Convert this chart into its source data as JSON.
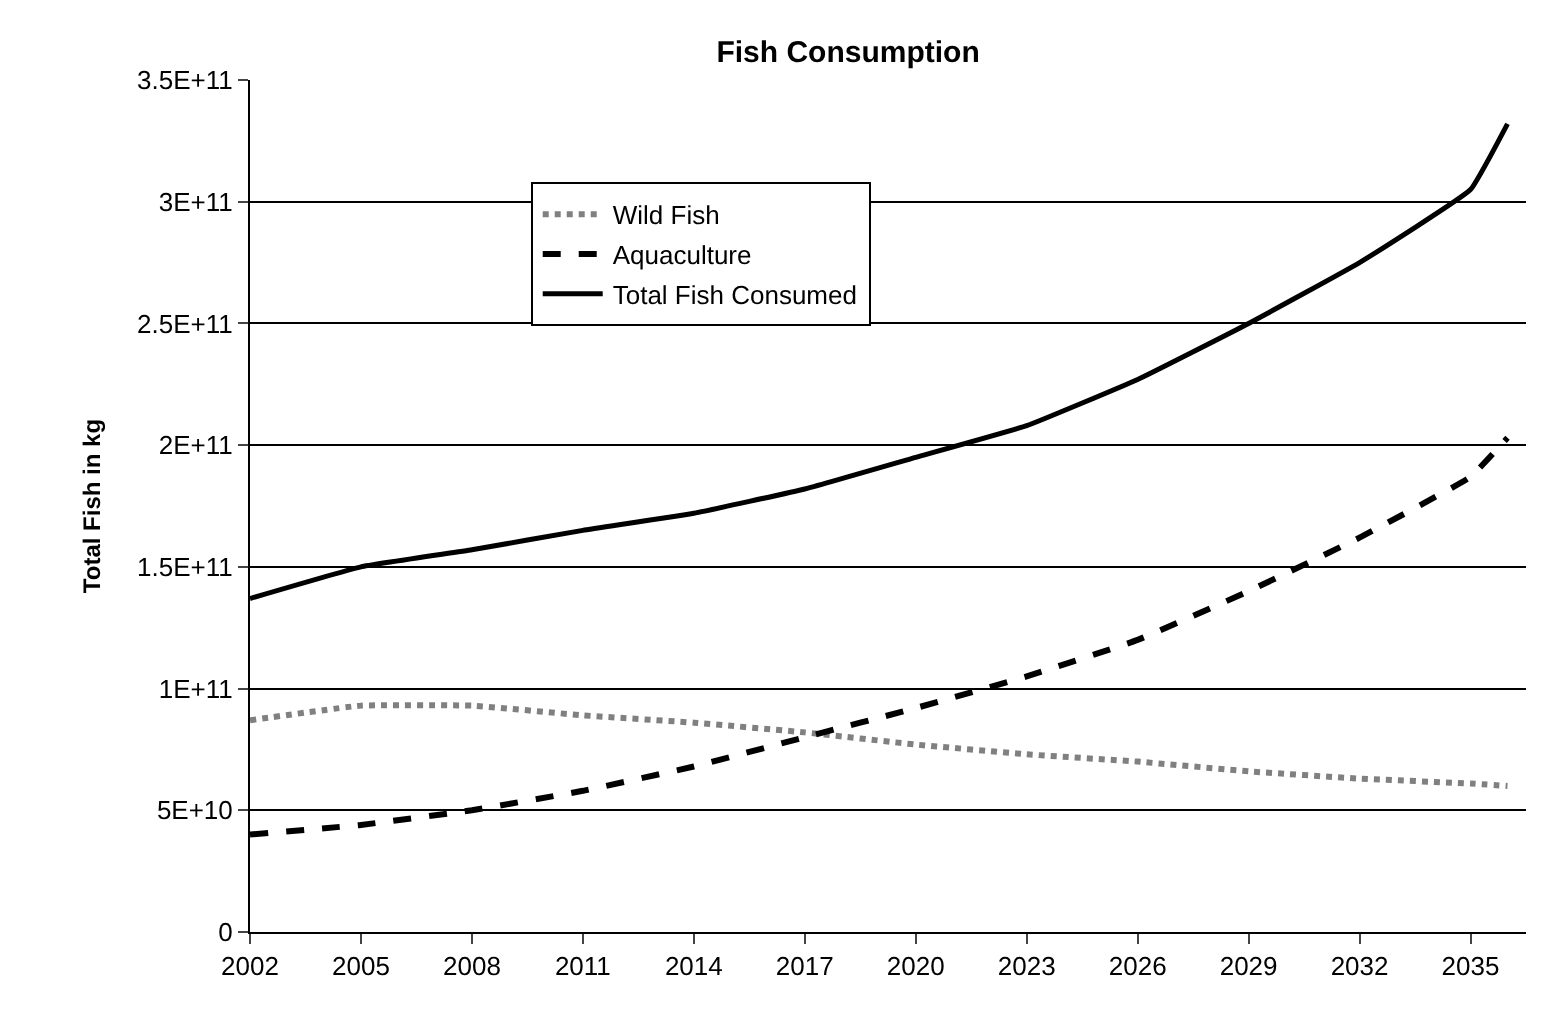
{
  "chart_data": {
    "type": "line",
    "title": "Fish Consumption",
    "ylabel": "Total Fish in kg",
    "x": [
      2002,
      2005,
      2008,
      2011,
      2014,
      2017,
      2020,
      2023,
      2026,
      2029,
      2032,
      2035,
      2036
    ],
    "series": [
      {
        "name": "Wild Fish",
        "color": "#808080",
        "line_style": "dotted",
        "values": [
          87000000000.0,
          93000000000.0,
          93000000000.0,
          89000000000.0,
          86000000000.0,
          82000000000.0,
          77000000000.0,
          73000000000.0,
          70000000000.0,
          66000000000.0,
          63000000000.0,
          61000000000.0,
          60000000000.0
        ]
      },
      {
        "name": "Aquaculture",
        "color": "#000000",
        "line_style": "dashed",
        "values": [
          40000000000.0,
          44000000000.0,
          50000000000.0,
          58000000000.0,
          68000000000.0,
          80000000000.0,
          92000000000.0,
          105000000000.0,
          120000000000.0,
          140000000000.0,
          162000000000.0,
          187000000000.0,
          203000000000.0
        ]
      },
      {
        "name": "Total Fish Consumed",
        "color": "#000000",
        "line_style": "solid",
        "values": [
          137000000000.0,
          150000000000.0,
          157000000000.0,
          165000000000.0,
          172000000000.0,
          182000000000.0,
          195000000000.0,
          208000000000.0,
          227000000000.0,
          250000000000.0,
          275000000000.0,
          305000000000.0,
          332000000000.0
        ]
      }
    ],
    "xlim": [
      2002,
      2036.5
    ],
    "xticks": [
      2002,
      2005,
      2008,
      2011,
      2014,
      2017,
      2020,
      2023,
      2026,
      2029,
      2032,
      2035
    ],
    "ylim": [
      0,
      350000000000.0
    ],
    "yticks": [
      0,
      {
        "value": 50000000000.0,
        "label": "5E+10"
      },
      {
        "value": 100000000000.0,
        "label": "1E+11"
      },
      {
        "value": 150000000000.0,
        "label": "1.5E+11"
      },
      {
        "value": 200000000000.0,
        "label": "2E+11"
      },
      {
        "value": 250000000000.0,
        "label": "2.5E+11"
      },
      {
        "value": 300000000000.0,
        "label": "3E+11"
      },
      {
        "value": 350000000000.0,
        "label": "3.5E+11"
      }
    ],
    "grid": "y",
    "legend": "top left",
    "marker": "none"
  }
}
